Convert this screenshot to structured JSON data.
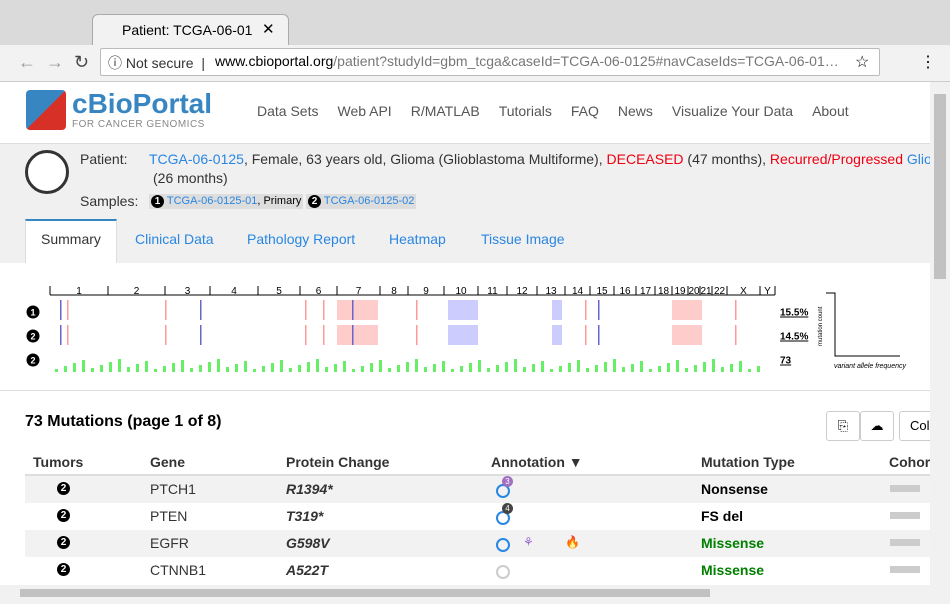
{
  "browser": {
    "tab_title": "Patient: TCGA-06-01",
    "security": "Not secure",
    "url_host": "www.cbioportal.org",
    "url_path": "/patient?studyId=gbm_tcga&caseId=TCGA-06-0125#navCaseIds=TCGA-06-01…"
  },
  "nav": {
    "logo": "cBioPortal",
    "logo_sub": "FOR CANCER GENOMICS",
    "links": [
      "Data Sets",
      "Web API",
      "R/MATLAB",
      "Tutorials",
      "FAQ",
      "News",
      "Visualize Your Data",
      "About"
    ]
  },
  "patient": {
    "label": "Patient:",
    "id": "TCGA-06-0125",
    "desc": ", Female, 63 years old, Glioma (Glioblastoma Multiforme), ",
    "status": "DECEASED",
    "status_time": " (47 months), ",
    "progress": "Recurred/Progressed",
    "extra": " Glio",
    "progress_time": "(26 months)",
    "samples_label": "Samples:",
    "samples": [
      {
        "num": "1",
        "id": "TCGA-06-0125-01",
        "type": ", Primary"
      },
      {
        "num": "2",
        "id": "TCGA-06-0125-02"
      }
    ]
  },
  "tabs": [
    "Summary",
    "Clinical Data",
    "Pathology Report",
    "Heatmap",
    "Tissue Image"
  ],
  "genome": {
    "chromosomes": [
      "1",
      "2",
      "3",
      "4",
      "5",
      "6",
      "7",
      "8",
      "9",
      "10",
      "11",
      "12",
      "13",
      "14",
      "15",
      "16",
      "17",
      "18",
      "19",
      "20",
      "21",
      "22",
      "X",
      "Y"
    ],
    "tracks": [
      {
        "num": "1",
        "label": "15.5%"
      },
      {
        "num": "2",
        "label": "14.5%"
      },
      {
        "num": "2",
        "label": "73"
      }
    ],
    "y_label": "mutation count",
    "x_label": "variant allele frequency"
  },
  "mutations": {
    "title": "73 Mutations (page 1 of 8)",
    "columns_button": "Col",
    "headers": [
      "Tumors",
      "Gene",
      "Protein Change",
      "Annotation ▼",
      "Mutation Type",
      "Cohor"
    ],
    "rows": [
      {
        "tumor": "2",
        "gene": "PTCH1",
        "protein": "R1394*",
        "annotation": "3",
        "type": "Nonsense",
        "type_color": "#000000"
      },
      {
        "tumor": "2",
        "gene": "PTEN",
        "protein": "T319*",
        "annotation": "4",
        "type": "FS del",
        "type_color": "#000000"
      },
      {
        "tumor": "2",
        "gene": "EGFR",
        "protein": "G598V",
        "type": "Missense",
        "type_color": "#008000"
      },
      {
        "tumor": "2",
        "gene": "CTNNB1",
        "protein": "A522T",
        "type": "Missense",
        "type_color": "#008000"
      }
    ]
  }
}
